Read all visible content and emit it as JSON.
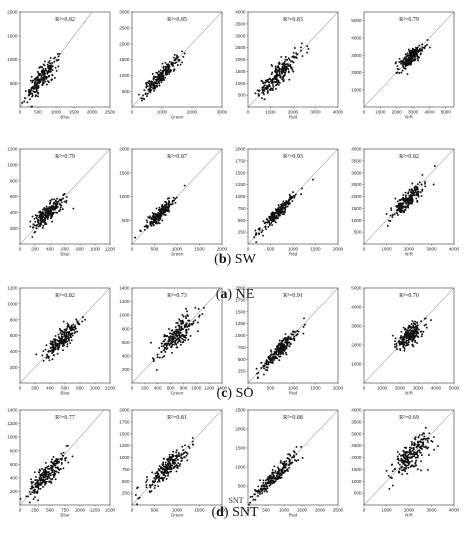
{
  "figure": {
    "rows": [
      {
        "label": "(a) NE",
        "prefix": "(a)",
        "name": "NE"
      },
      {
        "label": "(b) SW",
        "prefix": "(b)",
        "name": "SW"
      },
      {
        "label": "(c) SO",
        "prefix": "(c)",
        "name": "SO"
      },
      {
        "label": "(d) SNT",
        "prefix": "(d)",
        "name": "SNT"
      }
    ],
    "stray_text": "SNT",
    "colors": {
      "points": "#111111",
      "axes": "#333333",
      "line": "#666666"
    }
  },
  "chart_data": [
    {
      "type": "scatter",
      "row": 0,
      "col": 0,
      "title": "R²=0.82",
      "xlabel": "Blue",
      "xlim": [
        0,
        2500
      ],
      "ylim": [
        0,
        2000
      ],
      "xticks": [
        0,
        500,
        1000,
        1500,
        2000,
        2500
      ],
      "yticks": [
        500,
        1000,
        1500,
        2000
      ],
      "cluster": {
        "mean": [
          600,
          600
        ],
        "sd_major": 310,
        "sd_minor": 80,
        "n": 230,
        "max": 2450
      }
    },
    {
      "type": "scatter",
      "row": 0,
      "col": 1,
      "title": "R²=0.85",
      "xlabel": "Green",
      "xlim": [
        0,
        3000
      ],
      "ylim": [
        0,
        3000
      ],
      "xticks": [
        0,
        1000,
        2000,
        3000
      ],
      "yticks": [
        500,
        1000,
        1500,
        2000,
        2500,
        3000
      ],
      "cluster": {
        "mean": [
          1000,
          1000
        ],
        "sd_major": 420,
        "sd_minor": 95,
        "n": 230,
        "max": 2900
      }
    },
    {
      "type": "scatter",
      "row": 0,
      "col": 2,
      "title": "R²=0.83",
      "xlabel": "Red",
      "xlim": [
        0,
        4000
      ],
      "ylim": [
        0,
        4000
      ],
      "xticks": [
        0,
        1000,
        2000,
        3000,
        4000
      ],
      "yticks": [
        500,
        1000,
        1500,
        2000,
        2500,
        3000,
        3500,
        4000
      ],
      "cluster": {
        "mean": [
          1300,
          1300
        ],
        "sd_major": 620,
        "sd_minor": 170,
        "n": 230,
        "max": 3800
      }
    },
    {
      "type": "scatter",
      "row": 0,
      "col": 3,
      "title": "R²=0.79",
      "xlabel": "NIR",
      "xlim": [
        0,
        5500
      ],
      "ylim": [
        0,
        5500
      ],
      "xticks": [
        0,
        1000,
        2000,
        3000,
        4000,
        5000
      ],
      "yticks": [
        1000,
        2000,
        3000,
        4000,
        5000
      ],
      "cluster": {
        "mean": [
          2900,
          2900
        ],
        "sd_major": 480,
        "sd_minor": 170,
        "n": 230,
        "max": 4700
      }
    },
    {
      "type": "scatter",
      "row": 1,
      "col": 0,
      "title": "R²=0.79",
      "xlabel": "Blue",
      "xlim": [
        0,
        1200
      ],
      "ylim": [
        0,
        1200
      ],
      "xticks": [
        0,
        200,
        400,
        600,
        800,
        1000,
        1200
      ],
      "yticks": [
        200,
        400,
        600,
        800,
        1000,
        1200
      ],
      "cluster": {
        "mean": [
          380,
          400
        ],
        "sd_major": 140,
        "sd_minor": 45,
        "n": 230,
        "max": 1000
      }
    },
    {
      "type": "scatter",
      "row": 1,
      "col": 1,
      "title": "R²=0.87",
      "xlabel": "Green",
      "xlim": [
        0,
        2000
      ],
      "ylim": [
        0,
        2000
      ],
      "xticks": [
        0,
        500,
        1000,
        1500,
        2000
      ],
      "yticks": [
        500,
        1000,
        1500,
        2000
      ],
      "cluster": {
        "mean": [
          600,
          620
        ],
        "sd_major": 220,
        "sd_minor": 50,
        "n": 230,
        "max": 1700
      }
    },
    {
      "type": "scatter",
      "row": 1,
      "col": 2,
      "title": "R²=0.93",
      "xlabel": "Red",
      "xlim": [
        0,
        2000
      ],
      "ylim": [
        0,
        2000
      ],
      "xticks": [
        0,
        500,
        1000,
        1500,
        2000
      ],
      "yticks": [
        250,
        500,
        750,
        1000,
        1250,
        1500,
        1750,
        2000
      ],
      "cluster": {
        "mean": [
          650,
          650
        ],
        "sd_major": 280,
        "sd_minor": 45,
        "n": 230,
        "max": 1800
      }
    },
    {
      "type": "scatter",
      "row": 1,
      "col": 3,
      "title": "R²=0.82",
      "xlabel": "NIR",
      "xlim": [
        0,
        4000
      ],
      "ylim": [
        0,
        4000
      ],
      "xticks": [
        0,
        1000,
        2000,
        3000,
        4000
      ],
      "yticks": [
        500,
        1000,
        1500,
        2000,
        2500,
        3000,
        3500,
        4000
      ],
      "cluster": {
        "mean": [
          1900,
          1800
        ],
        "sd_major": 520,
        "sd_minor": 140,
        "n": 230,
        "max": 3400
      }
    },
    {
      "type": "scatter",
      "row": 2,
      "col": 0,
      "title": "R²=0.82",
      "xlabel": "Blue",
      "xlim": [
        0,
        1200
      ],
      "ylim": [
        0,
        1200
      ],
      "xticks": [
        0,
        200,
        400,
        600,
        800,
        1000,
        1200
      ],
      "yticks": [
        200,
        400,
        600,
        800,
        1000,
        1200
      ],
      "cluster": {
        "mean": [
          560,
          550
        ],
        "sd_major": 160,
        "sd_minor": 45,
        "n": 230,
        "max": 1150
      }
    },
    {
      "type": "scatter",
      "row": 2,
      "col": 1,
      "title": "R²=0.73",
      "xlabel": "Green",
      "xlim": [
        0,
        1400
      ],
      "ylim": [
        0,
        1400
      ],
      "xticks": [
        0,
        200,
        400,
        600,
        800,
        1000,
        1200,
        1400
      ],
      "yticks": [
        200,
        400,
        600,
        800,
        1000,
        1200,
        1400
      ],
      "cluster": {
        "mean": [
          700,
          700
        ],
        "sd_major": 190,
        "sd_minor": 75,
        "n": 230,
        "max": 1200
      }
    },
    {
      "type": "scatter",
      "row": 2,
      "col": 2,
      "title": "R²=0.91",
      "xlabel": "Red",
      "xlim": [
        0,
        2000
      ],
      "ylim": [
        0,
        2000
      ],
      "xticks": [
        0,
        500,
        1000,
        1500,
        2000
      ],
      "yticks": [
        250,
        500,
        750,
        1000,
        1250,
        1500,
        1750,
        2000
      ],
      "cluster": {
        "mean": [
          700,
          700
        ],
        "sd_major": 300,
        "sd_minor": 55,
        "n": 230,
        "max": 1850
      }
    },
    {
      "type": "scatter",
      "row": 2,
      "col": 3,
      "title": "R²=0.70",
      "xlabel": "NIR",
      "xlim": [
        0,
        5000
      ],
      "ylim": [
        0,
        5000
      ],
      "xticks": [
        0,
        1000,
        2000,
        3000,
        4000,
        5000
      ],
      "yticks": [
        1000,
        2000,
        3000,
        4000,
        5000
      ],
      "cluster": {
        "mean": [
          2500,
          2500
        ],
        "sd_major": 430,
        "sd_minor": 200,
        "n": 230,
        "max": 3800
      }
    },
    {
      "type": "scatter",
      "row": 3,
      "col": 0,
      "title": "R²=0.77",
      "xlabel": "Blue",
      "xlim": [
        0,
        1500
      ],
      "ylim": [
        0,
        1400
      ],
      "xticks": [
        0,
        250,
        500,
        750,
        1000,
        1250,
        1500
      ],
      "yticks": [
        200,
        400,
        600,
        800,
        1000,
        1200,
        1400
      ],
      "cluster": {
        "mean": [
          450,
          440
        ],
        "sd_major": 200,
        "sd_minor": 60,
        "n": 230,
        "max": 1250
      }
    },
    {
      "type": "scatter",
      "row": 3,
      "col": 1,
      "title": "R²=0.81",
      "xlabel": "Green",
      "xlim": [
        0,
        2000
      ],
      "ylim": [
        0,
        2000
      ],
      "xticks": [
        0,
        500,
        1000,
        1500,
        2000
      ],
      "yticks": [
        250,
        500,
        750,
        1000,
        1250,
        1500,
        1750,
        2000
      ],
      "cluster": {
        "mean": [
          800,
          800
        ],
        "sd_major": 330,
        "sd_minor": 85,
        "n": 230,
        "max": 1800
      }
    },
    {
      "type": "scatter",
      "row": 3,
      "col": 2,
      "title": "R²=0.88",
      "xlabel": "Red",
      "xlim": [
        0,
        2500
      ],
      "ylim": [
        0,
        2500
      ],
      "xticks": [
        0,
        500,
        1000,
        1500,
        2000,
        2500
      ],
      "yticks": [
        500,
        1000,
        1500,
        2000,
        2500
      ],
      "cluster": {
        "mean": [
          750,
          750
        ],
        "sd_major": 400,
        "sd_minor": 70,
        "n": 230,
        "max": 2400
      }
    },
    {
      "type": "scatter",
      "row": 3,
      "col": 3,
      "title": "R²=0.69",
      "xlabel": "NIR",
      "xlim": [
        0,
        4000
      ],
      "ylim": [
        0,
        4000
      ],
      "xticks": [
        0,
        1000,
        2000,
        3000,
        4000
      ],
      "yticks": [
        500,
        1000,
        1500,
        2000,
        2500,
        3000,
        3500,
        4000
      ],
      "cluster": {
        "mean": [
          2100,
          2100
        ],
        "sd_major": 620,
        "sd_minor": 220,
        "n": 230,
        "max": 3900
      }
    }
  ]
}
